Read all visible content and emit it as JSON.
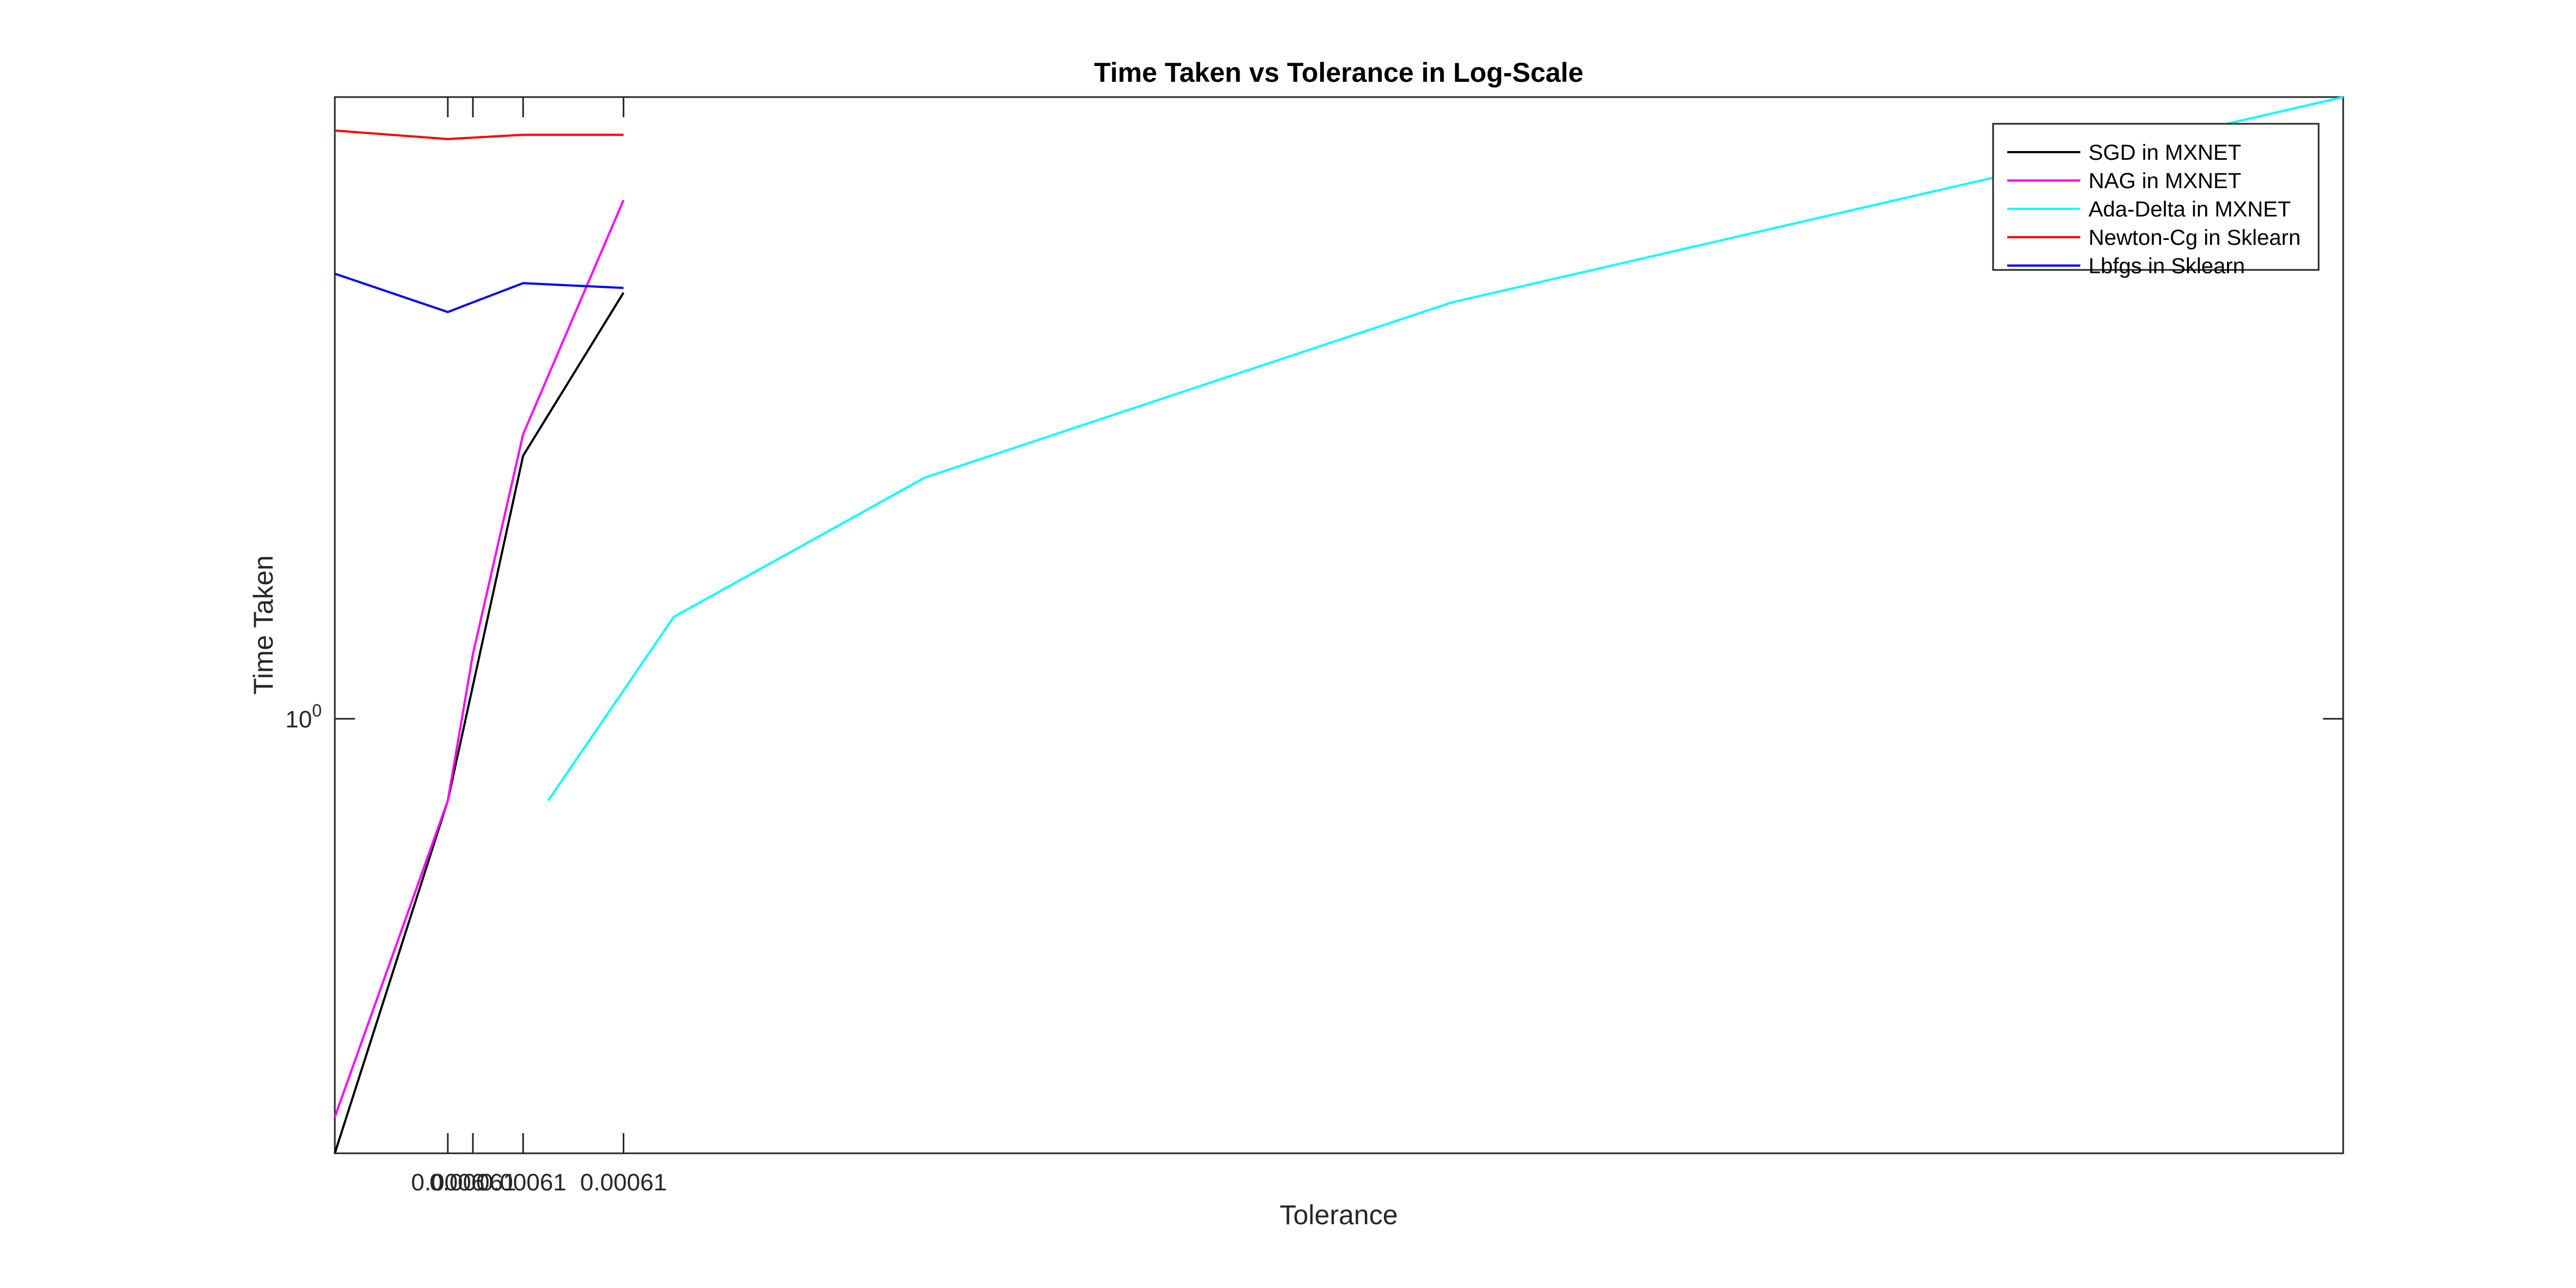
{
  "chart_data": {
    "type": "line",
    "title": "Time Taken vs Tolerance in Log-Scale",
    "xlabel": "Tolerance",
    "ylabel": "Time Taken",
    "yscale": "log",
    "xlim": [
      0.0006,
      0.0007
    ],
    "ylim": [
      0.72,
      1.6
    ],
    "grid": false,
    "legend_position": "top-right",
    "x_ticks": [
      {
        "value": 0.000605625,
        "label": "0.0006"
      },
      {
        "value": 0.000606875,
        "label": "0.00061"
      },
      {
        "value": 0.000609375,
        "label": "0.00061"
      },
      {
        "value": 0.000614375,
        "label": "0.00061"
      }
    ],
    "y_ticks": [
      {
        "value": 1,
        "base": "10",
        "exponent": "0"
      }
    ],
    "series": [
      {
        "name": "SGD in MXNET",
        "color": "#000000",
        "x": [
          0.0006,
          0.000605625,
          0.000609375,
          0.000614375
        ],
        "y": [
          0.72,
          0.94,
          1.22,
          1.38
        ]
      },
      {
        "name": "NAG in MXNET",
        "color": "#ff00ff",
        "x": [
          0.0006,
          0.000605625,
          0.000606875,
          0.000609375,
          0.000614375
        ],
        "y": [
          0.74,
          0.94,
          1.05,
          1.24,
          1.48
        ]
      },
      {
        "name": "Ada-Delta in MXNET",
        "color": "#00ffff",
        "x": [
          0.000610625,
          0.000616875,
          0.000629375,
          0.000655625,
          0.0007
        ],
        "y": [
          0.94,
          1.08,
          1.2,
          1.37,
          1.6
        ]
      },
      {
        "name": "Newton-Cg in Sklearn",
        "color": "#ff0000",
        "x": [
          0.0006,
          0.000605625,
          0.000609375,
          0.000614375
        ],
        "y": [
          1.56,
          1.55,
          1.555,
          1.555
        ]
      },
      {
        "name": "Lbfgs in Sklearn",
        "color": "#0000ff",
        "x": [
          0.0006,
          0.000605625,
          0.000606875,
          0.000609375,
          0.000614375
        ],
        "y": [
          1.4,
          1.36,
          1.37,
          1.39,
          1.385
        ]
      }
    ]
  }
}
